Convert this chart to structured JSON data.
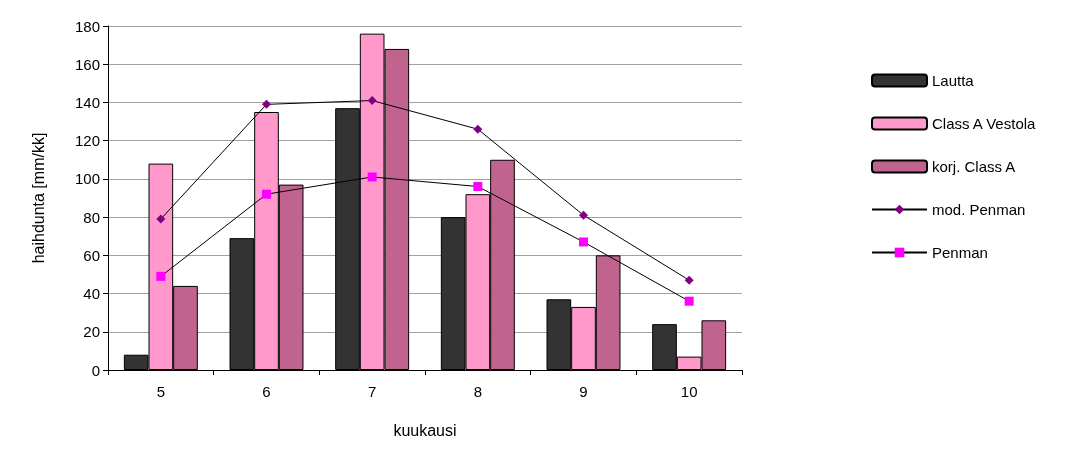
{
  "chart_data": {
    "type": "bar",
    "xlabel": "kuukausi",
    "ylabel": "haihdunta [mm/kk]",
    "categories": [
      "5",
      "6",
      "7",
      "8",
      "9",
      "10"
    ],
    "ylim": [
      0,
      180
    ],
    "yticks": [
      0,
      20,
      40,
      60,
      80,
      100,
      120,
      140,
      160,
      180
    ],
    "grid": "y",
    "legend": "right",
    "series": [
      {
        "name": "Lautta",
        "color": "#333333",
        "values": [
          8,
          69,
          137,
          80,
          37,
          24
        ]
      },
      {
        "name": "Class A Vestola",
        "color": "#ff99cc",
        "values": [
          108,
          135,
          176,
          92,
          33,
          7
        ]
      },
      {
        "name": "korj. Class A",
        "color": "#c0648f",
        "values": [
          44,
          97,
          168,
          110,
          60,
          26
        ]
      },
      {
        "name": "mod. Penman",
        "type": "line",
        "marker": "diamond",
        "color": "#800080",
        "values": [
          79,
          139,
          141,
          126,
          81,
          47
        ]
      },
      {
        "name": "Penman",
        "type": "line",
        "marker": "square",
        "color": "#ff00ff",
        "values": [
          49,
          92,
          101,
          96,
          67,
          36
        ]
      }
    ]
  }
}
